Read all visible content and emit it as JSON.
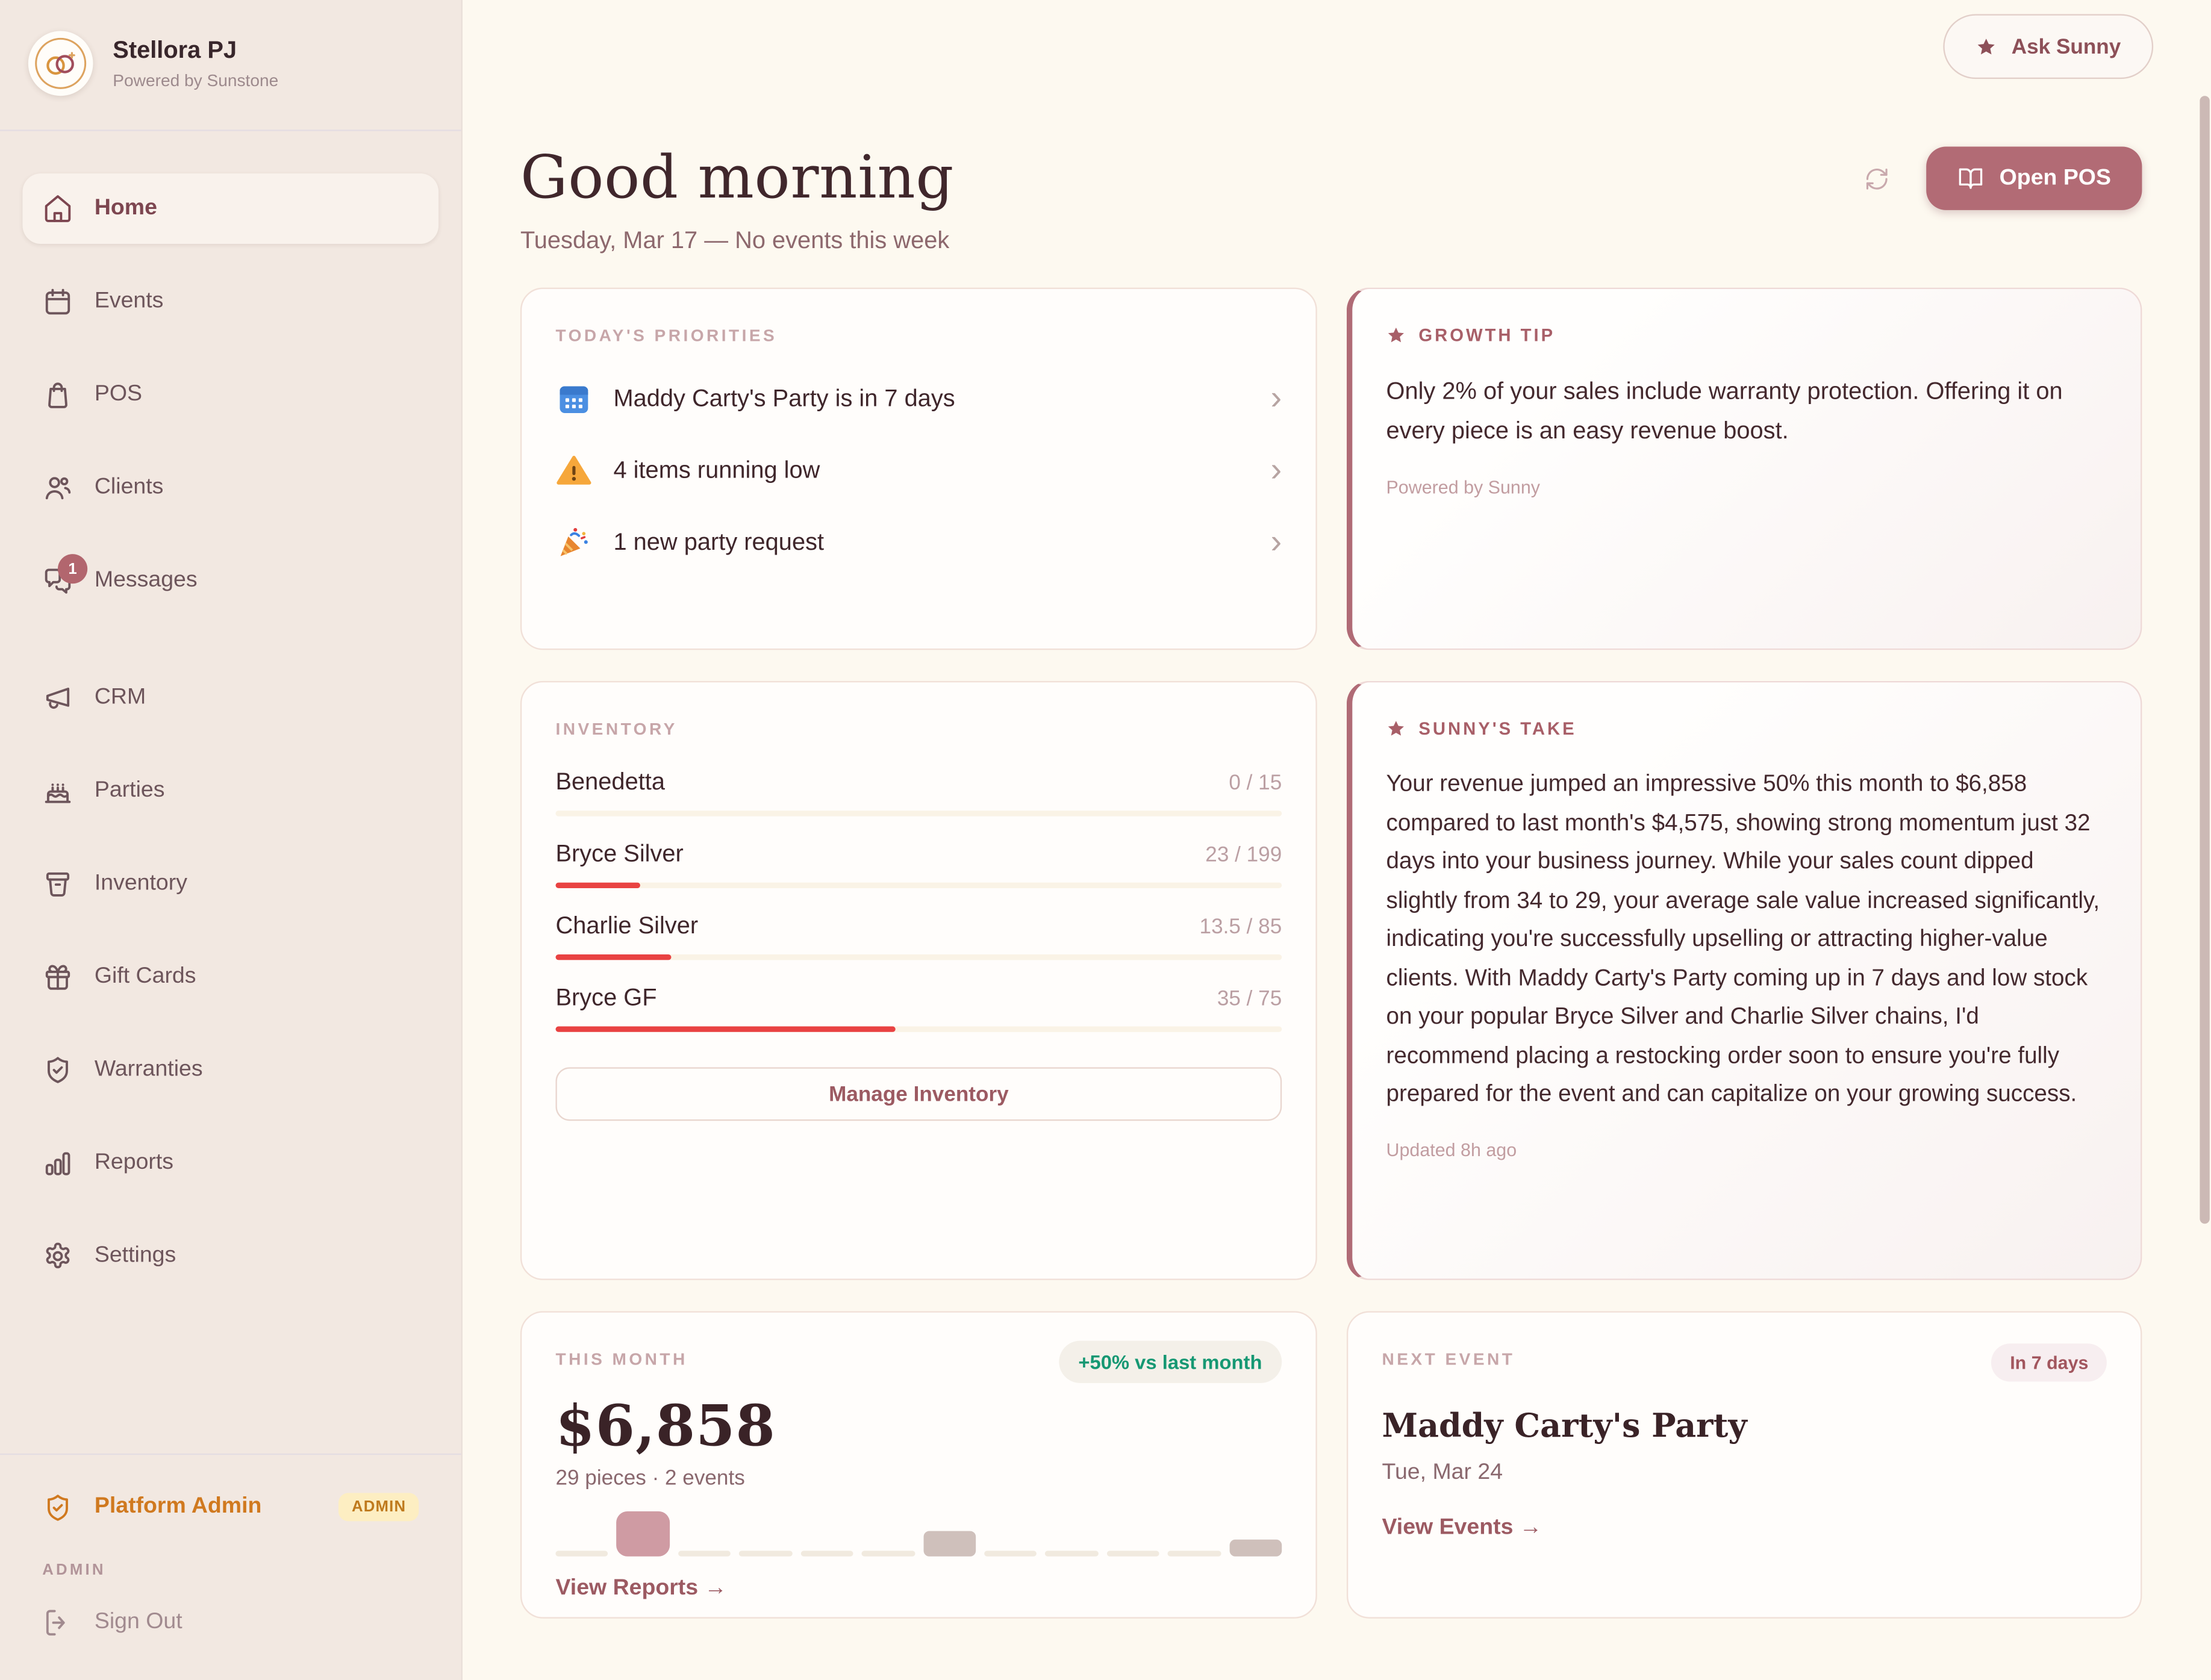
{
  "sidebar": {
    "brand": {
      "name": "Stellora PJ",
      "tagline": "Powered by Sunstone",
      "logo_icon": "rings-logo"
    },
    "nav": [
      {
        "label": "Home",
        "icon": "house-icon",
        "active": true
      },
      {
        "label": "Events",
        "icon": "calendar-icon"
      },
      {
        "label": "POS",
        "icon": "shopping-bag-icon"
      },
      {
        "label": "Clients",
        "icon": "users-icon"
      },
      {
        "label": "Messages",
        "icon": "chat-icon",
        "badge": "1"
      },
      {
        "label": "CRM",
        "icon": "megaphone-icon",
        "group_break": true
      },
      {
        "label": "Parties",
        "icon": "cake-icon"
      },
      {
        "label": "Inventory",
        "icon": "bin-icon"
      },
      {
        "label": "Gift Cards",
        "icon": "gift-icon"
      },
      {
        "label": "Warranties",
        "icon": "shield-check-icon"
      },
      {
        "label": "Reports",
        "icon": "bar-chart-icon"
      },
      {
        "label": "Settings",
        "icon": "gear-icon"
      }
    ],
    "admin_link": {
      "label": "Platform Admin",
      "badge": "ADMIN",
      "icon": "shield-check-icon"
    },
    "section_label": "ADMIN",
    "sign_out": {
      "label": "Sign Out",
      "icon": "logout-icon"
    }
  },
  "header": {
    "ask_sunny_label": "Ask Sunny",
    "greeting": "Good morning",
    "subtitle": "Tuesday, Mar 17 — No events this week",
    "open_pos_label": "Open POS"
  },
  "priorities": {
    "title": "TODAY'S PRIORITIES",
    "items": [
      {
        "icon": "calendar-emoji-icon",
        "text": "Maddy Carty's Party is in 7 days"
      },
      {
        "icon": "warning-emoji-icon",
        "text": "4 items running low"
      },
      {
        "icon": "party-emoji-icon",
        "text": "1 new party request"
      }
    ]
  },
  "growth_tip": {
    "title": "GROWTH TIP",
    "body": "Only 2% of your sales include warranty protection. Offering it on every piece is an easy revenue boost.",
    "footer": "Powered by Sunny"
  },
  "inventory": {
    "title": "INVENTORY",
    "items": [
      {
        "name": "Benedetta",
        "value": "0 / 15",
        "pct": 0
      },
      {
        "name": "Bryce Silver",
        "value": "23 / 199",
        "pct": 11.6
      },
      {
        "name": "Charlie Silver",
        "value": "13.5 / 85",
        "pct": 15.9
      },
      {
        "name": "Bryce GF",
        "value": "35 / 75",
        "pct": 46.7
      }
    ],
    "button_label": "Manage Inventory"
  },
  "sunnys_take": {
    "title": "SUNNY'S TAKE",
    "body": "Your revenue jumped an impressive 50% this month to $6,858 compared to last month's $4,575, showing strong momentum just 32 days into your business journey. While your sales count dipped slightly from 34 to 29, your average sale value increased significantly, indicating you're successfully upselling or attracting higher-value clients. With Maddy Carty's Party coming up in 7 days and low stock on your popular Bryce Silver and Charlie Silver chains, I'd recommend placing a restocking order soon to ensure you're fully prepared for the event and can capitalize on your growing success.",
    "footer": "Updated 8h ago"
  },
  "this_month": {
    "title": "THIS MONTH",
    "badge": "+50% vs last month",
    "amount": "$6,858",
    "meta": "29 pieces · 2 events",
    "link_label": "View Reports →",
    "chart": {
      "type": "bar",
      "values": [
        6,
        100,
        6,
        6,
        6,
        6,
        55,
        6,
        6,
        6,
        6,
        38
      ],
      "emphasis": [
        "flat",
        "highlight",
        "flat",
        "flat",
        "flat",
        "flat",
        "secondary",
        "flat",
        "flat",
        "flat",
        "flat",
        "secondary"
      ],
      "colors": {
        "highlight": "#cf9ba3",
        "secondary": "#cfc0bb",
        "flat": "#f1eadf"
      }
    }
  },
  "next_event": {
    "title": "NEXT EVENT",
    "badge": "In 7 days",
    "name": "Maddy Carty's Party",
    "date": "Tue, Mar 24",
    "link_label": "View Events →"
  },
  "colors": {
    "accent": "#b26b75",
    "sidebar_bg": "#f2e8e1",
    "main_bg": "#fdf9f0",
    "progress_red": "#e94242",
    "badge_green_text": "#169873",
    "admin_orange": "#d0791f"
  }
}
